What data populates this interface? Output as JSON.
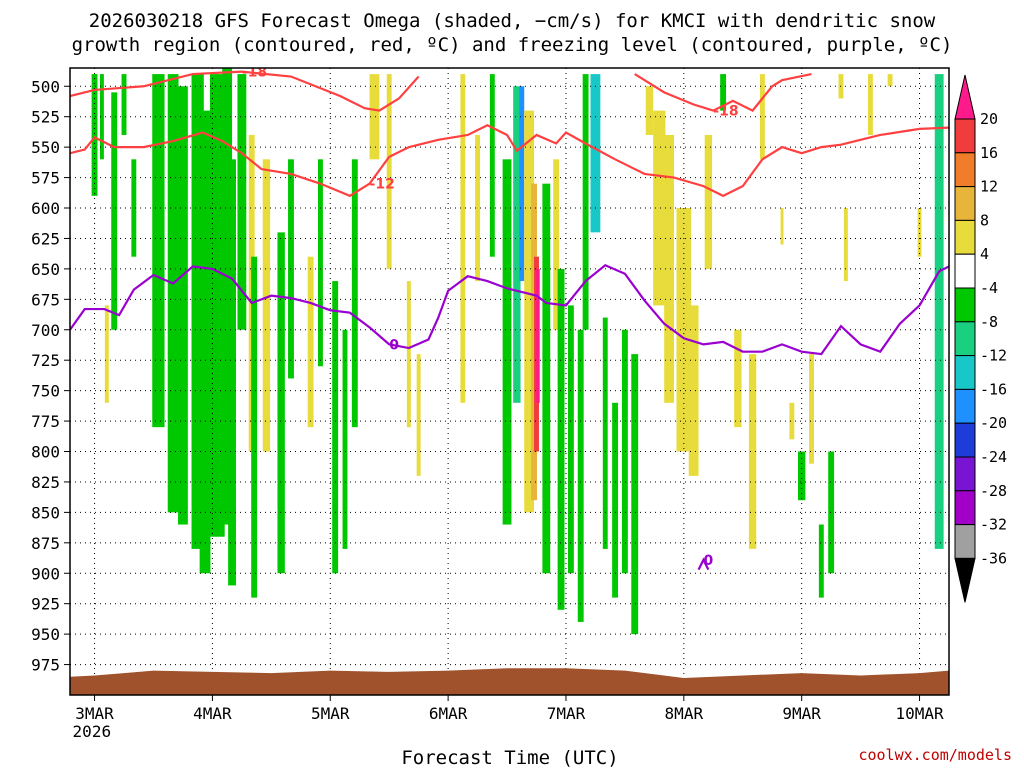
{
  "title_line1": "2026030218 GFS Forecast Omega (shaded, −cm/s) for KMCI with dendritic snow",
  "title_line2": "growth region (contoured, red, ºC) and freezing level (contoured, purple, ºC)",
  "x_axis_label": "Forecast Time (UTC)",
  "credit": "coolwx.com/models",
  "colors": {
    "isotherm_red": "#ff4040",
    "freezing_purple": "#9a00d0",
    "terrain": "#a0522d",
    "grid": "#000000"
  },
  "chart_data": {
    "type": "heatmap",
    "x_unit": "forecast time (UTC)",
    "x_ticks": [
      {
        "label": "3MAR",
        "sub": "2026",
        "t": 0
      },
      {
        "label": "4MAR",
        "t": 24
      },
      {
        "label": "5MAR",
        "t": 48
      },
      {
        "label": "6MAR",
        "t": 72
      },
      {
        "label": "7MAR",
        "t": 96
      },
      {
        "label": "8MAR",
        "t": 120
      },
      {
        "label": "9MAR",
        "t": 144
      },
      {
        "label": "10MAR",
        "t": 168
      }
    ],
    "xlim_hours_from_3MAR00": [
      -5,
      174
    ],
    "y_unit": "hPa",
    "y_ticks": [
      500,
      525,
      550,
      575,
      600,
      625,
      650,
      675,
      700,
      725,
      750,
      775,
      800,
      825,
      850,
      875,
      900,
      925,
      950,
      975
    ],
    "ylim": [
      485,
      1000
    ],
    "colorbar": {
      "ticks": [
        20,
        16,
        12,
        8,
        4,
        -4,
        -8,
        -12,
        -16,
        -20,
        -24,
        -28,
        -32,
        -36
      ],
      "colors": [
        "#ff1a8c",
        "#f03c3c",
        "#f07d2a",
        "#e6b53a",
        "#e8dc3c",
        "#ffffff",
        "#00c800",
        "#18d080",
        "#18c8c8",
        "#1e90ff",
        "#1e3cd8",
        "#7814d2",
        "#a000c8",
        "#a0a0a0",
        "#000000"
      ]
    },
    "contours_red": [
      {
        "label": "-18",
        "points": [
          [
            -5,
            508
          ],
          [
            0,
            503
          ],
          [
            10,
            500
          ],
          [
            20,
            490
          ],
          [
            30,
            488
          ],
          [
            40,
            492
          ],
          [
            45,
            500
          ],
          [
            50,
            508
          ],
          [
            55,
            518
          ],
          [
            58,
            520
          ],
          [
            62,
            510
          ],
          [
            66,
            492
          ]
        ]
      },
      {
        "label": "-12",
        "points": [
          [
            -5,
            555
          ],
          [
            -2,
            552
          ],
          [
            0,
            542
          ],
          [
            4,
            550
          ],
          [
            10,
            550
          ],
          [
            16,
            545
          ],
          [
            22,
            538
          ],
          [
            26,
            545
          ],
          [
            30,
            555
          ],
          [
            34,
            568
          ],
          [
            40,
            572
          ],
          [
            46,
            580
          ],
          [
            52,
            590
          ],
          [
            56,
            580
          ],
          [
            60,
            558
          ],
          [
            64,
            550
          ],
          [
            70,
            544
          ],
          [
            76,
            540
          ],
          [
            80,
            532
          ],
          [
            84,
            540
          ],
          [
            86,
            553
          ],
          [
            90,
            540
          ],
          [
            94,
            547
          ],
          [
            96,
            538
          ],
          [
            100,
            547
          ],
          [
            106,
            560
          ],
          [
            112,
            572
          ],
          [
            118,
            575
          ],
          [
            124,
            582
          ],
          [
            128,
            590
          ],
          [
            132,
            582
          ],
          [
            136,
            560
          ],
          [
            140,
            550
          ],
          [
            144,
            555
          ],
          [
            148,
            550
          ],
          [
            152,
            548
          ],
          [
            160,
            540
          ],
          [
            168,
            535
          ],
          [
            174,
            534
          ]
        ]
      },
      {
        "label": "-18",
        "points": [
          [
            110,
            490
          ],
          [
            116,
            505
          ],
          [
            122,
            515
          ],
          [
            126,
            520
          ],
          [
            130,
            512
          ],
          [
            134,
            520
          ],
          [
            138,
            500
          ],
          [
            140,
            495
          ],
          [
            146,
            490
          ]
        ]
      }
    ],
    "contours_purple": [
      {
        "label": "0",
        "points": [
          [
            -5,
            700
          ],
          [
            -2,
            683
          ],
          [
            2,
            683
          ],
          [
            5,
            688
          ],
          [
            8,
            667
          ],
          [
            12,
            655
          ],
          [
            16,
            662
          ],
          [
            20,
            648
          ],
          [
            24,
            650
          ],
          [
            28,
            658
          ],
          [
            32,
            678
          ],
          [
            36,
            672
          ],
          [
            40,
            674
          ],
          [
            44,
            678
          ],
          [
            48,
            684
          ],
          [
            52,
            686
          ],
          [
            56,
            698
          ],
          [
            60,
            712
          ],
          [
            64,
            715
          ],
          [
            68,
            708
          ],
          [
            70,
            690
          ],
          [
            72,
            668
          ],
          [
            76,
            656
          ],
          [
            80,
            660
          ],
          [
            84,
            666
          ],
          [
            88,
            670
          ],
          [
            90,
            672
          ],
          [
            92,
            678
          ],
          [
            96,
            680
          ],
          [
            100,
            660
          ],
          [
            104,
            647
          ],
          [
            108,
            654
          ],
          [
            112,
            676
          ],
          [
            116,
            695
          ],
          [
            120,
            707
          ],
          [
            124,
            712
          ],
          [
            128,
            710
          ],
          [
            132,
            718
          ],
          [
            136,
            718
          ],
          [
            140,
            712
          ],
          [
            144,
            718
          ],
          [
            148,
            720
          ],
          [
            152,
            697
          ],
          [
            156,
            712
          ],
          [
            160,
            718
          ],
          [
            164,
            695
          ],
          [
            168,
            680
          ],
          [
            172,
            652
          ],
          [
            174,
            648
          ]
        ]
      },
      {
        "label": "0",
        "points": [
          [
            123,
            897
          ],
          [
            124,
            889
          ],
          [
            125,
            897
          ]
        ]
      }
    ],
    "terrain_top_hpa": [
      [
        -5,
        985
      ],
      [
        0,
        984
      ],
      [
        6,
        982
      ],
      [
        12,
        980
      ],
      [
        24,
        981
      ],
      [
        36,
        982
      ],
      [
        48,
        980
      ],
      [
        60,
        981
      ],
      [
        72,
        980
      ],
      [
        84,
        978
      ],
      [
        96,
        978
      ],
      [
        108,
        980
      ],
      [
        120,
        986
      ],
      [
        132,
        984
      ],
      [
        144,
        982
      ],
      [
        156,
        984
      ],
      [
        168,
        982
      ],
      [
        174,
        980
      ]
    ]
  }
}
